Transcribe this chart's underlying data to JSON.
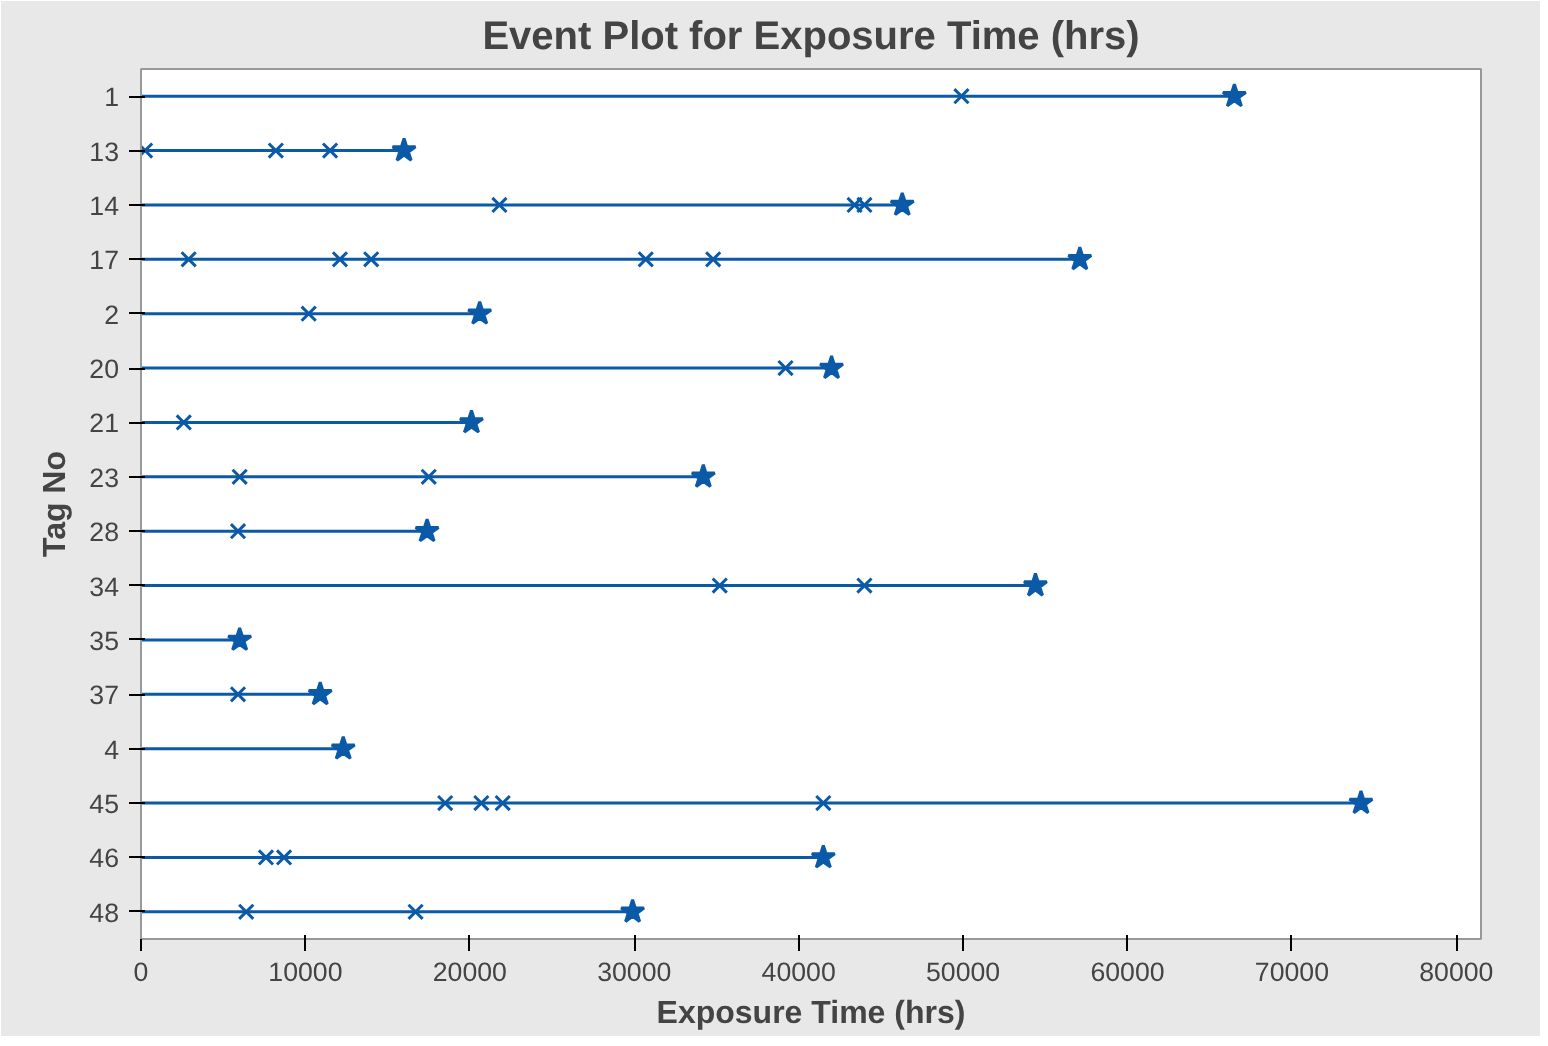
{
  "chart_data": {
    "type": "lollipop",
    "orientation": "horizontal",
    "title": "Event Plot for Exposure Time (hrs)",
    "xlabel": "Exposure Time (hrs)",
    "ylabel": "Tag No",
    "categories": [
      "1",
      "13",
      "14",
      "17",
      "2",
      "20",
      "21",
      "23",
      "28",
      "34",
      "35",
      "37",
      "4",
      "45",
      "46",
      "48"
    ],
    "xlim": [
      0,
      81500
    ],
    "xticks": [
      0,
      10000,
      20000,
      30000,
      40000,
      50000,
      60000,
      70000,
      80000
    ],
    "grid": false,
    "series": [
      {
        "marker": "star",
        "color": "#0b5aa8",
        "values": [
          66500,
          16000,
          46300,
          57100,
          20600,
          42000,
          20100,
          34200,
          17400,
          54400,
          6000,
          10900,
          12300,
          74200,
          41500,
          29900
        ]
      },
      {
        "type": "scatter",
        "marker": "cross",
        "color": "#0b5aa8",
        "x": [
          "1",
          "13",
          "13",
          "13",
          "14",
          "14",
          "14",
          "17",
          "17",
          "17",
          "17",
          "17",
          "2",
          "20",
          "21",
          "23",
          "23",
          "28",
          "34",
          "34",
          "37",
          "45",
          "45",
          "45",
          "45",
          "46",
          "46",
          "48",
          "48"
        ],
        "values": [
          49900,
          250,
          8200,
          11500,
          21800,
          43400,
          44000,
          2900,
          12100,
          14000,
          30700,
          34800,
          10200,
          39200,
          2600,
          6000,
          17500,
          5900,
          35200,
          44000,
          5900,
          18500,
          20700,
          22000,
          41500,
          7600,
          8700,
          6400,
          16700
        ]
      }
    ]
  }
}
